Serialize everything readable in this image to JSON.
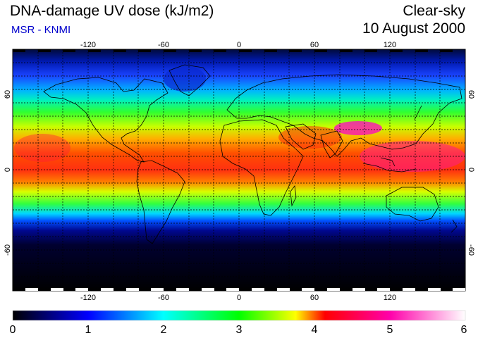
{
  "title": "DNA-damage UV dose (kJ/m2)",
  "subtitle": "MSR - KNMI",
  "sky_condition": "Clear-sky",
  "date": "10 August 2000",
  "map": {
    "projection": "equirectangular",
    "lon_range": [
      -180,
      180
    ],
    "lat_range": [
      -90,
      90
    ],
    "lon_ticks": [
      "-120",
      "-60",
      "0",
      "60",
      "120"
    ],
    "lat_ticks_left": [
      "60",
      "0",
      "-60"
    ],
    "lat_ticks_right": [
      "60",
      "0",
      "-60"
    ],
    "graticule": "dashed, every 20 degrees"
  },
  "colorbar": {
    "min": 0,
    "max": 6,
    "labels": [
      "0",
      "1",
      "2",
      "3",
      "4",
      "5",
      "6"
    ],
    "colors": [
      "#000000",
      "#0000ff",
      "#00ffff",
      "#00ff00",
      "#ffff00",
      "#ff0000",
      "#ff00aa",
      "#ffffff"
    ]
  },
  "colors": {
    "subtitle": "#0000cc",
    "coastline": "#000000"
  }
}
